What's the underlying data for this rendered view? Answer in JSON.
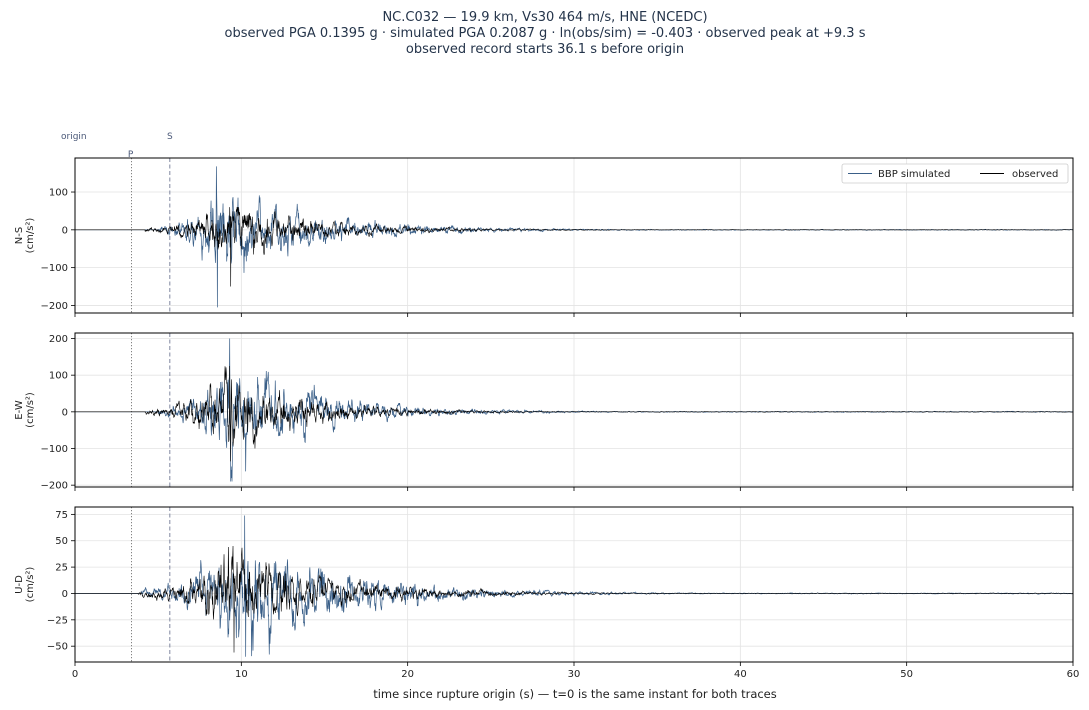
{
  "header": {
    "line1": "NC.C032  —  19.9 km, Vs30 464 m/s, HNE (NCEDC)",
    "line2": "observed PGA 0.1395 g   ·   simulated PGA 0.2087 g   ·   ln(obs/sim) = -0.403   ·   observed peak at +9.3 s",
    "line3": "observed record starts 36.1 s before origin"
  },
  "phase_labels": {
    "origin": "origin",
    "P": "P",
    "S": "S"
  },
  "colors": {
    "simulated": "#3a5f88",
    "observed": "#000000",
    "grid": "#e3e3e3",
    "p_line": "#777777",
    "s_line": "#8088a0"
  },
  "chart_data": {
    "type": "line",
    "xlabel": "time since rupture origin (s)   —   t=0 is the same instant for both traces",
    "xlim": [
      0,
      60
    ],
    "xticks": [
      0,
      10,
      20,
      30,
      40,
      50,
      60
    ],
    "p_arrival_s": 3.4,
    "s_arrival_s": 5.7,
    "legend": {
      "placement": "top-right",
      "entries": [
        "BBP simulated",
        "observed"
      ]
    },
    "series_names": [
      "BBP simulated",
      "observed"
    ],
    "panels": [
      {
        "component": "N-S",
        "ylabel": "N-S\n(cm/s²)",
        "ylim": [
          -220,
          190
        ],
        "yticks": [
          100,
          0,
          -100,
          -200
        ],
        "simulated_envelope": {
          "onset": 5.0,
          "peak_time": 8.5,
          "peak_amp": 165,
          "decay": 0.18,
          "min_amp": -205,
          "max_amp": 168
        },
        "observed_envelope": {
          "onset": 4.2,
          "peak_time": 9.3,
          "peak_amp": 100,
          "decay": 0.2,
          "min_amp": -150,
          "max_amp": 60
        }
      },
      {
        "component": "E-W",
        "ylabel": "E-W\n(cm/s²)",
        "ylim": [
          -205,
          215
        ],
        "yticks": [
          200,
          100,
          0,
          -100,
          -200
        ],
        "simulated_envelope": {
          "onset": 5.0,
          "peak_time": 9.3,
          "peak_amp": 200,
          "decay": 0.2,
          "min_amp": -190,
          "max_amp": 200
        },
        "observed_envelope": {
          "onset": 4.2,
          "peak_time": 9.3,
          "peak_amp": 137,
          "decay": 0.22,
          "min_amp": -135,
          "max_amp": 125
        }
      },
      {
        "component": "U-D",
        "ylabel": "U-D\n(cm/s²)",
        "ylim": [
          -65,
          82
        ],
        "yticks": [
          75,
          50,
          25,
          0,
          -25,
          -50
        ],
        "simulated_envelope": {
          "onset": 4.0,
          "peak_time": 10.2,
          "peak_amp": 74,
          "decay": 0.17,
          "min_amp": -60,
          "max_amp": 74
        },
        "observed_envelope": {
          "onset": 3.8,
          "peak_time": 9.5,
          "peak_amp": 55,
          "decay": 0.18,
          "min_amp": -56,
          "max_amp": 45
        }
      }
    ]
  }
}
